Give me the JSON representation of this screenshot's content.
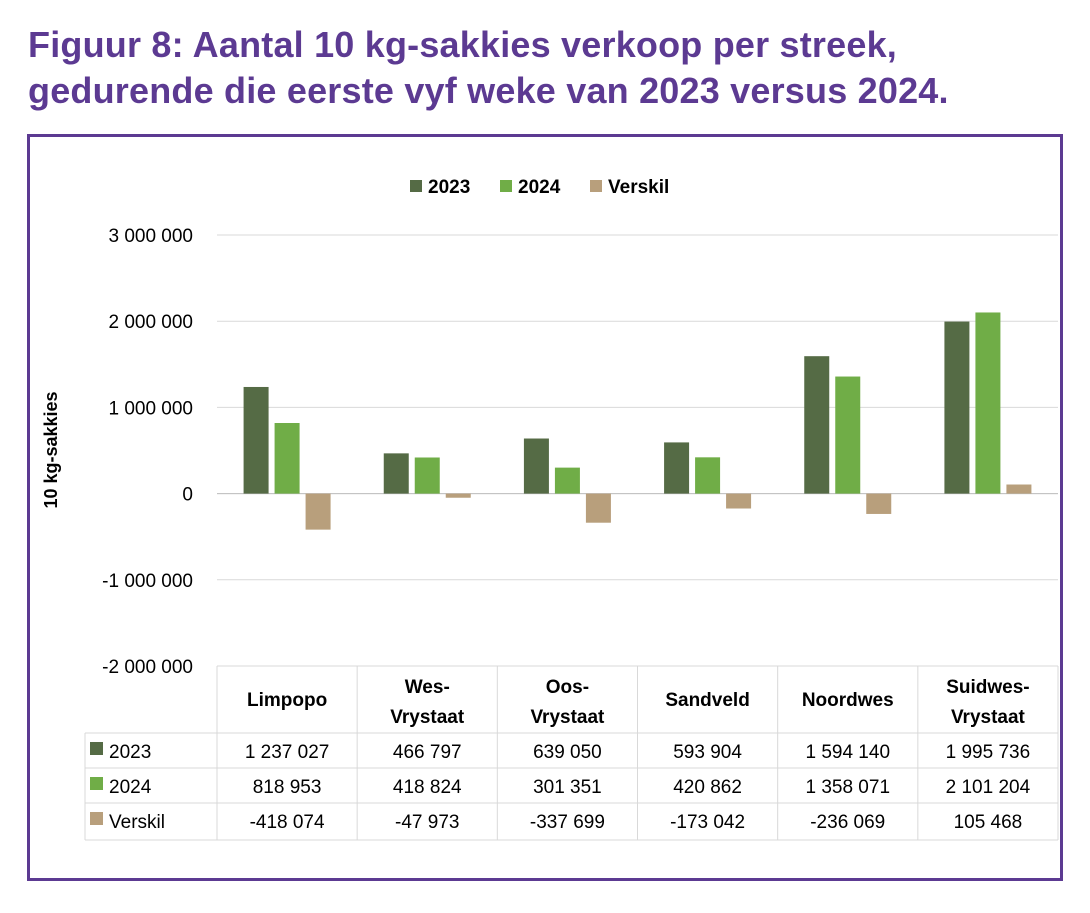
{
  "title_line1": "Figuur 8: Aantal 10 kg-sakkies verkoop per streek,",
  "title_line2": "gedurende die eerste vyf weke van 2023 versus 2024.",
  "chart_data": {
    "type": "bar",
    "title": "",
    "xlabel": "",
    "ylabel": "10 kg-sakkies",
    "ylim": [
      -2000000,
      3000000
    ],
    "yticks": [
      3000000,
      2000000,
      1000000,
      0,
      -1000000,
      -2000000
    ],
    "ytick_labels": [
      "3 000 000",
      "2 000 000",
      "1 000 000",
      "0",
      "-1 000 000",
      "-2 000 000"
    ],
    "grid": true,
    "legend_position": "top",
    "categories": [
      [
        "Limpopo"
      ],
      [
        "Wes-",
        "Vrystaat"
      ],
      [
        "Oos-",
        "Vrystaat"
      ],
      [
        "Sandveld"
      ],
      [
        "Noordwes"
      ],
      [
        "Suidwes-",
        "Vrystaat"
      ]
    ],
    "series": [
      {
        "name": "2023",
        "color": "#556B45",
        "values": [
          1237027,
          466797,
          639050,
          593904,
          1594140,
          1995736
        ],
        "labels": [
          "1 237 027",
          "466 797",
          "639 050",
          "593 904",
          "1 594 140",
          "1 995 736"
        ]
      },
      {
        "name": "2024",
        "color": "#70AD47",
        "values": [
          818953,
          418824,
          301351,
          420862,
          1358071,
          2101204
        ],
        "labels": [
          "818 953",
          "418 824",
          "301 351",
          "420 862",
          "1 358 071",
          "2 101 204"
        ]
      },
      {
        "name": "Verskil",
        "color": "#B89F7C",
        "values": [
          -418074,
          -47973,
          -337699,
          -173042,
          -236069,
          105468
        ],
        "labels": [
          "-418 074",
          "-47 973",
          "-337 699",
          "-173 042",
          "-236 069",
          "105 468"
        ]
      }
    ]
  }
}
